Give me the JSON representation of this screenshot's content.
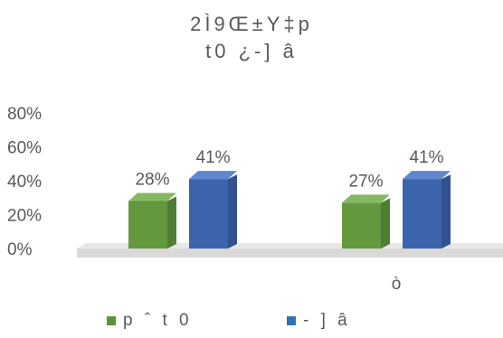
{
  "chart_data": {
    "type": "bar",
    "title_line1": "2Ì9Œ±Y‡p",
    "title_line2": "t0 ¿-] â",
    "categories": [
      "",
      "ò"
    ],
    "series": [
      {
        "name": "p ˆ t 0",
        "values": [
          28,
          27
        ],
        "color": "#70ad47"
      },
      {
        "name": "- ] â",
        "values": [
          41,
          41
        ],
        "color": "#4472c4"
      }
    ],
    "data_labels": [
      [
        "28%",
        "27%"
      ],
      [
        "41%",
        "41%"
      ]
    ],
    "y_ticks": [
      "0%",
      "20%",
      "40%",
      "60%",
      "80%"
    ],
    "ylim": [
      0,
      80
    ],
    "grid": false,
    "legend_position": "bottom",
    "style": "3d-column"
  }
}
